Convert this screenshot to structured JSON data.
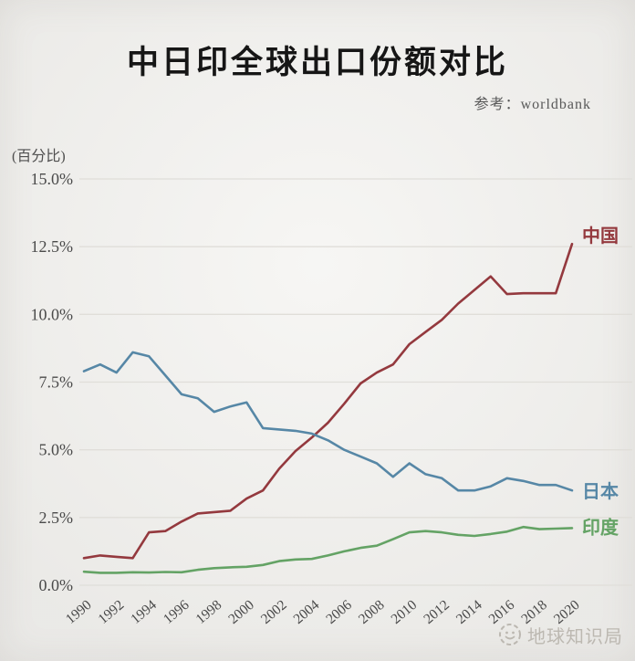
{
  "page": {
    "title": "中日印全球出口份额对比",
    "source_note": "参考：worldbank",
    "y_unit_label": "(百分比)",
    "watermark": "地球知识局"
  },
  "colors": {
    "background": "#f2f1ee",
    "gridline": "#e0ded9",
    "tick_text": "#4a4a4a",
    "title_text": "#161616",
    "subtitle_text": "#585858",
    "watermark": "#bcb8b1",
    "china_line": "#94393e",
    "japan_line": "#5687a6",
    "india_line": "#64a365"
  },
  "chart_data": {
    "type": "line",
    "title": "中日印全球出口份额对比",
    "source_note": "参考：worldbank",
    "ylabel": "(百分比)",
    "ylim": [
      0,
      15
    ],
    "grid": true,
    "legend_position": "line-end-labels-right",
    "ytick_values": [
      0,
      2.5,
      5,
      7.5,
      10,
      12.5,
      15
    ],
    "ytick_labels": [
      "0.0%",
      "2.5%",
      "5.0%",
      "7.5%",
      "10.0%",
      "12.5%",
      "15.0%"
    ],
    "x": [
      1990,
      1991,
      1992,
      1993,
      1994,
      1995,
      1996,
      1997,
      1998,
      1999,
      2000,
      2001,
      2002,
      2003,
      2004,
      2005,
      2006,
      2007,
      2008,
      2009,
      2010,
      2011,
      2012,
      2013,
      2014,
      2015,
      2016,
      2017,
      2018,
      2019,
      2020
    ],
    "xtick_labels": [
      "1990",
      "1992",
      "1994",
      "1996",
      "1998",
      "2000",
      "2002",
      "2004",
      "2006",
      "2008",
      "2010",
      "2012",
      "2014",
      "2016",
      "2018",
      "2020"
    ],
    "series": [
      {
        "id": "china",
        "name": "中国",
        "color": "#94393e",
        "values": [
          1.0,
          1.1,
          1.05,
          1.0,
          1.95,
          2.0,
          2.35,
          2.65,
          2.7,
          2.75,
          3.2,
          3.5,
          4.3,
          4.95,
          5.45,
          6.0,
          6.7,
          7.45,
          7.85,
          8.15,
          8.9,
          9.35,
          9.8,
          10.4,
          10.9,
          11.4,
          10.75,
          10.78,
          10.78,
          10.78,
          12.6
        ]
      },
      {
        "id": "japan",
        "name": "日本",
        "color": "#5687a6",
        "values": [
          7.9,
          8.15,
          7.85,
          8.6,
          8.45,
          7.75,
          7.05,
          6.9,
          6.4,
          6.6,
          6.75,
          5.8,
          5.75,
          5.7,
          5.6,
          5.35,
          5.0,
          4.75,
          4.5,
          4.0,
          4.5,
          4.1,
          3.95,
          3.5,
          3.5,
          3.65,
          3.95,
          3.85,
          3.7,
          3.7,
          3.5
        ]
      },
      {
        "id": "india",
        "name": "印度",
        "color": "#64a365",
        "values": [
          0.5,
          0.46,
          0.46,
          0.48,
          0.47,
          0.49,
          0.48,
          0.57,
          0.63,
          0.66,
          0.68,
          0.75,
          0.89,
          0.95,
          0.97,
          1.1,
          1.25,
          1.38,
          1.46,
          1.7,
          1.95,
          2.0,
          1.95,
          1.86,
          1.82,
          1.89,
          1.98,
          2.15,
          2.07,
          2.09,
          2.11
        ]
      }
    ]
  }
}
